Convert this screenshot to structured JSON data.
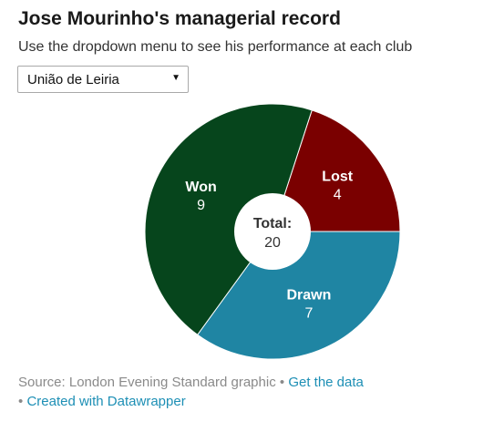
{
  "header": {
    "title": "Jose Mourinho's managerial record",
    "subtitle": "Use the dropdown menu to see his performance at each club"
  },
  "dropdown": {
    "selected": "União de Leiria",
    "arrow_icon": "triangle-down-icon"
  },
  "chart_data": {
    "type": "pie",
    "style": "donut",
    "categories": [
      "Lost",
      "Drawn",
      "Won"
    ],
    "values": [
      4,
      7,
      9
    ],
    "colors": [
      "#7a0000",
      "#1f85a3",
      "#06451c"
    ],
    "center_label": "Total:",
    "center_value": "20"
  },
  "footer": {
    "source": "Source: London Evening Standard graphic",
    "separator": "•",
    "get_data_link": "Get the data",
    "datawrapper_link": "Created with Datawrapper"
  }
}
